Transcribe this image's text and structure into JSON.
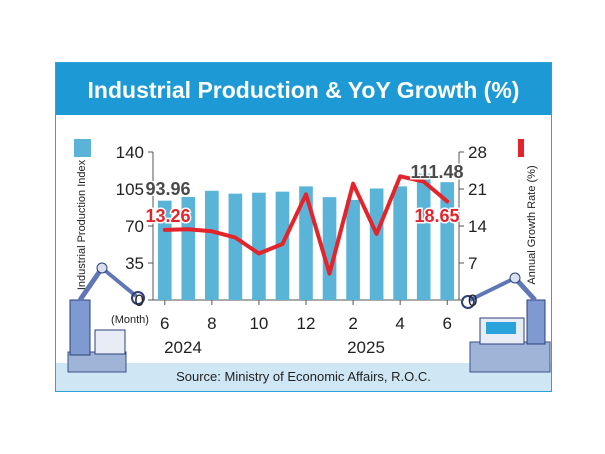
{
  "chart_data": {
    "type": "bar",
    "title": "Industrial Production & YoY Growth (%)",
    "source": "Source: Ministry of Economic Affairs, R.O.C.",
    "x_unit_label": "(Month)",
    "categories": [
      "2024-06",
      "2024-07",
      "2024-08",
      "2024-09",
      "2024-10",
      "2024-11",
      "2024-12",
      "2025-01",
      "2025-02",
      "2025-03",
      "2025-04",
      "2025-05",
      "2025-06"
    ],
    "x_tick_labels": [
      "6",
      "8",
      "10",
      "12",
      "2",
      "4",
      "6"
    ],
    "year_labels": [
      "2024",
      "2025"
    ],
    "series": [
      {
        "kind": "bar",
        "axis": "left",
        "name": "Industrial Production Index",
        "color": "#5ab4d8",
        "values": [
          93.96,
          97.5,
          103.3,
          100.6,
          101.5,
          102.5,
          107.5,
          97.3,
          94.6,
          105.5,
          107.5,
          119.5,
          111.48
        ]
      },
      {
        "kind": "line",
        "axis": "right",
        "name": "Annual Growth Rate (%)",
        "color": "#e3242b",
        "values": [
          13.26,
          13.4,
          13.0,
          11.8,
          8.8,
          10.6,
          20.0,
          5.0,
          22.0,
          12.5,
          23.4,
          22.4,
          18.65
        ]
      }
    ],
    "y_left": {
      "label": "Industrial Production Index",
      "min": 0,
      "max": 140,
      "ticks": [
        "0",
        "35",
        "70",
        "105",
        "140"
      ]
    },
    "y_right": {
      "label": "Annual Growth Rate (%)",
      "min": 0,
      "max": 28,
      "ticks": [
        "0",
        "7",
        "14",
        "21",
        "28"
      ]
    },
    "data_labels": {
      "first_bar": "93.96",
      "last_bar": "111.48",
      "first_line": "13.26",
      "last_line": "18.65"
    },
    "legend": "top-left bar swatch, top-right line swatch",
    "grid": false
  }
}
